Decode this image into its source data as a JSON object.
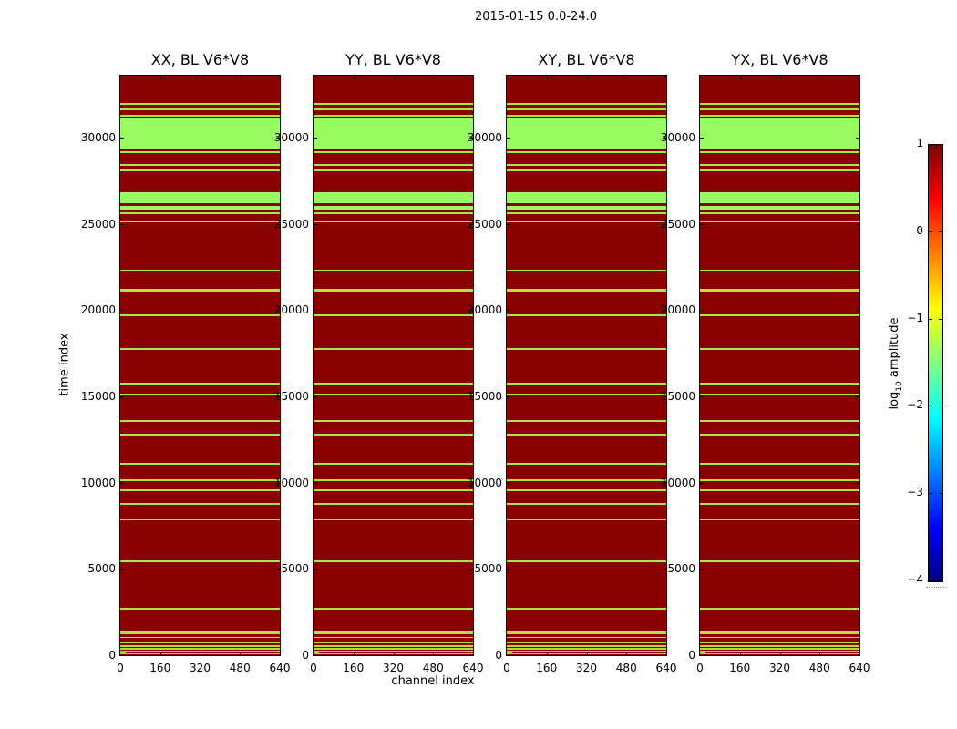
{
  "figure": {
    "title": "2015-01-15 0.0-24.0",
    "background": "#ffffff"
  },
  "panels": [
    {
      "title": "XX, BL V6*V8"
    },
    {
      "title": "YY, BL V6*V8"
    },
    {
      "title": "XY, BL V6*V8"
    },
    {
      "title": "YX, BL V6*V8"
    }
  ],
  "axes": {
    "xlabel": "channel index",
    "ylabel": "time index",
    "x_tick_labels": [
      "0",
      "160",
      "320",
      "480",
      "640"
    ],
    "x_tick_values": [
      0,
      160,
      320,
      480,
      640
    ],
    "y_tick_labels": [
      "0",
      "5000",
      "10000",
      "15000",
      "20000",
      "25000",
      "30000"
    ],
    "y_tick_values": [
      0,
      5000,
      10000,
      15000,
      20000,
      25000,
      30000
    ]
  },
  "colorbar": {
    "label_prefix": "log",
    "label_sub": "10",
    "label_suffix": " amplitude",
    "tick_labels": [
      "1",
      "0",
      "−1",
      "−2",
      "−3",
      "−4"
    ],
    "tick_values": [
      1,
      0,
      -1,
      -2,
      -3,
      -4
    ],
    "range_min": -4,
    "range_max": 1,
    "colormap": "jet",
    "gradient_stops": [
      [
        "#7f0000",
        0
      ],
      [
        "#ff0000",
        12.5
      ],
      [
        "#ff8000",
        25
      ],
      [
        "#ffff00",
        37.5
      ],
      [
        "#80ff80",
        50
      ],
      [
        "#00ffff",
        62.5
      ],
      [
        "#0080ff",
        75
      ],
      [
        "#0000ff",
        87.5
      ],
      [
        "#000080",
        100
      ]
    ]
  },
  "chart_data": {
    "type": "heatmap",
    "title": "2015-01-15 0.0-24.0",
    "panel_titles": [
      "XX, BL V6*V8",
      "YY, BL V6*V8",
      "XY, BL V6*V8",
      "YX, BL V6*V8"
    ],
    "xlabel": "channel index",
    "ylabel": "time index",
    "x_range": [
      0,
      640
    ],
    "y_range": [
      0,
      33600
    ],
    "x_ticks": [
      0,
      160,
      320,
      480,
      640
    ],
    "y_ticks": [
      0,
      5000,
      10000,
      15000,
      20000,
      25000,
      30000
    ],
    "colorbar_label": "log10 amplitude",
    "colorbar_range": [
      -4,
      1
    ],
    "colorbar_ticks": [
      1,
      0,
      -1,
      -2,
      -3,
      -4
    ],
    "colormap": "jet",
    "background_log10_amplitude": 1.0,
    "background_color": "#8b0000",
    "note": "All four polarization panels show the same pattern: uniform high amplitude (dark red, log10 amp ~1) over all 640 channels, broken by horizontal low-amplitude green stripes at the time-index ranges listed below.",
    "stripe_classes": {
      "block": {
        "color": "#99fb5f",
        "log10_amplitude": -1.5
      },
      "line": {
        "color": "#a7e741",
        "log10_amplitude": -1.3
      },
      "hairline": {
        "color": "#b2d838",
        "log10_amplitude": -1.1
      },
      "edge": {
        "color": "#bdca31",
        "log10_amplitude": -0.9
      }
    },
    "stripes": [
      [
        31910,
        32020,
        "line"
      ],
      [
        31570,
        31730,
        "line"
      ],
      [
        31200,
        31310,
        "line"
      ],
      [
        29380,
        31120,
        "block"
      ],
      [
        29090,
        29200,
        "line"
      ],
      [
        28350,
        28460,
        "line"
      ],
      [
        28060,
        28170,
        "line"
      ],
      [
        26220,
        26850,
        "block"
      ],
      [
        25850,
        26060,
        "block"
      ],
      [
        25560,
        25670,
        "line"
      ],
      [
        25090,
        25190,
        "line"
      ],
      [
        22270,
        22370,
        "line"
      ],
      [
        21080,
        21240,
        "line"
      ],
      [
        19630,
        19740,
        "line"
      ],
      [
        17680,
        17790,
        "line"
      ],
      [
        15680,
        15790,
        "line"
      ],
      [
        15050,
        15150,
        "line"
      ],
      [
        13520,
        13630,
        "line"
      ],
      [
        12730,
        12830,
        "line"
      ],
      [
        11040,
        11150,
        "line"
      ],
      [
        10090,
        10200,
        "line"
      ],
      [
        9510,
        9620,
        "line"
      ],
      [
        8720,
        8830,
        "line"
      ],
      [
        7830,
        7930,
        "line"
      ],
      [
        5400,
        5510,
        "line"
      ],
      [
        2660,
        2770,
        "line"
      ],
      [
        1240,
        1350,
        "line"
      ],
      [
        980,
        1080,
        "line"
      ],
      [
        660,
        740,
        "hairline"
      ],
      [
        500,
        580,
        "hairline"
      ],
      [
        340,
        420,
        "hairline"
      ],
      [
        180,
        260,
        "hairline"
      ],
      [
        30,
        130,
        "edge"
      ]
    ],
    "corner_marker": {
      "x_range": [
        0,
        20
      ],
      "t_range": [
        0,
        250
      ],
      "color": "#80e830"
    }
  }
}
